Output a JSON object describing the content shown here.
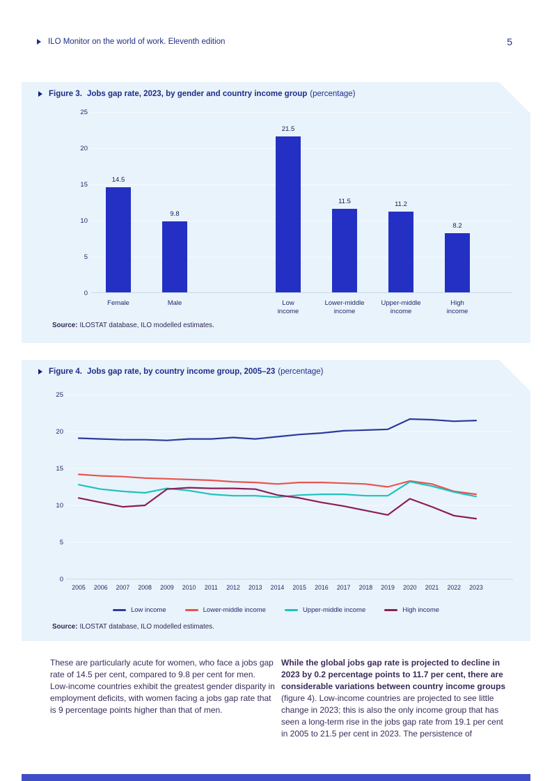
{
  "header": {
    "doc_title": "ILO Monitor on the world of work. Eleventh edition",
    "page_number": "5"
  },
  "figure3": {
    "label": "Figure 3.",
    "title": "Jobs gap rate, 2023, by gender and country income group",
    "title_suffix": "(percentage)",
    "source_label": "Source:",
    "source_text": "ILOSTAT database, ILO modelled estimates."
  },
  "figure4": {
    "label": "Figure 4.",
    "title": "Jobs gap rate, by country income group, 2005–23",
    "title_suffix": "(percentage)",
    "source_label": "Source:",
    "source_text": "ILOSTAT database, ILO modelled estimates."
  },
  "body_text": {
    "left_column": "These are particularly acute for women, who face a jobs gap rate of 14.5 per cent, compared to 9.8 per cent for men. Low-income countries exhibit the greatest gender disparity in employment deficits, with women facing a jobs gap rate that is 9 percentage points higher than that of men.",
    "right_column_bold": "While the global jobs gap rate is projected to decline in 2023 by 0.2 percentage points to 11.7 per cent, there are considerable variations between country income groups",
    "right_column_rest": " (figure 4). Low-income countries are projected to see little change in 2023; this is also the only income group that has seen a long-term rise in the jobs gap rate from 19.1 per cent in 2005 to 21.5 per cent in 2023. The persistence of"
  },
  "colors": {
    "panel_background": "#e9f3fc",
    "bar_blue": "#2330c3",
    "navy_text": "#1e2d87",
    "body_text": "#3a2a5a",
    "footer_bar": "#3f4ec6"
  },
  "chart_data": [
    {
      "type": "bar",
      "title": "Jobs gap rate, 2023, by gender and country income group (percentage)",
      "categories": [
        "Female",
        "Male",
        "Low\nincome",
        "Lower-middle\nincome",
        "Upper-middle\nincome",
        "High\nincome"
      ],
      "values": [
        14.5,
        9.8,
        21.5,
        11.5,
        11.2,
        8.2
      ],
      "bar_color": "#2330c3",
      "ylim": [
        0,
        25
      ],
      "yticks": [
        0,
        5,
        10,
        15,
        20,
        25
      ],
      "grid": true,
      "group_gap_after_index": 1
    },
    {
      "type": "line",
      "title": "Jobs gap rate, by country income group, 2005–23 (percentage)",
      "x": [
        2005,
        2006,
        2007,
        2008,
        2009,
        2010,
        2011,
        2012,
        2013,
        2014,
        2015,
        2016,
        2017,
        2018,
        2019,
        2020,
        2021,
        2022,
        2023
      ],
      "series": [
        {
          "name": "Low income",
          "color": "#2c3a9e",
          "values": [
            19.1,
            19.0,
            18.9,
            18.9,
            18.8,
            19.0,
            19.0,
            19.2,
            19.0,
            19.3,
            19.6,
            19.8,
            20.1,
            20.2,
            20.3,
            21.7,
            21.6,
            21.4,
            21.5
          ]
        },
        {
          "name": "Lower-middle income",
          "color": "#e9534e",
          "values": [
            14.2,
            14.0,
            13.9,
            13.7,
            13.6,
            13.5,
            13.4,
            13.2,
            13.1,
            12.9,
            13.1,
            13.1,
            13.0,
            12.9,
            12.5,
            13.3,
            12.9,
            11.9,
            11.5
          ]
        },
        {
          "name": "Upper-middle income",
          "color": "#1dc3bc",
          "values": [
            12.8,
            12.2,
            11.9,
            11.7,
            12.3,
            12.0,
            11.5,
            11.3,
            11.3,
            11.1,
            11.4,
            11.5,
            11.5,
            11.3,
            11.3,
            13.2,
            12.6,
            11.8,
            11.2
          ]
        },
        {
          "name": "High income",
          "color": "#8c1c55",
          "values": [
            11.0,
            10.4,
            9.8,
            10.0,
            12.2,
            12.4,
            12.3,
            12.3,
            12.2,
            11.4,
            11.0,
            10.4,
            9.9,
            9.3,
            8.7,
            10.9,
            9.8,
            8.6,
            8.2
          ]
        }
      ],
      "ylim": [
        0,
        25
      ],
      "yticks": [
        0,
        5,
        10,
        15,
        20,
        25
      ],
      "grid": true,
      "legend_position": "bottom"
    }
  ]
}
